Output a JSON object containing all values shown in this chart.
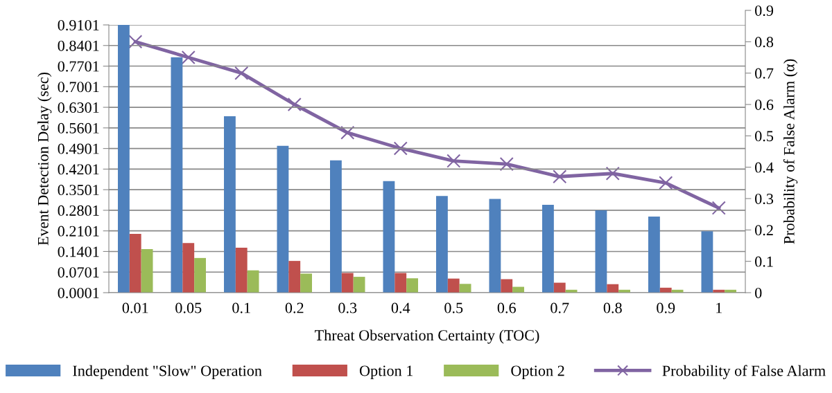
{
  "chart_data": {
    "type": "bar",
    "xlabel": "Threat Observation Certainty (TOC)",
    "ylabel": "Event Detection Delay (sec)",
    "y2label": "Probability of False Alarm (α)",
    "categories": [
      "0.01",
      "0.05",
      "0.1",
      "0.2",
      "0.3",
      "0.4",
      "0.5",
      "0.6",
      "0.7",
      "0.8",
      "0.9",
      "1"
    ],
    "series": [
      {
        "name": "Independent \"Slow\" Operation",
        "color": "#4f81bd",
        "values": [
          0.91,
          0.8,
          0.6,
          0.499,
          0.45,
          0.379,
          0.329,
          0.319,
          0.299,
          0.28,
          0.259,
          0.209
        ]
      },
      {
        "name": "Option 1",
        "color": "#c0504d",
        "values": [
          0.2,
          0.169,
          0.153,
          0.108,
          0.067,
          0.067,
          0.048,
          0.046,
          0.034,
          0.029,
          0.017,
          0.01
        ]
      },
      {
        "name": "Option 2",
        "color": "#9bbb59",
        "values": [
          0.148,
          0.118,
          0.076,
          0.065,
          0.054,
          0.049,
          0.03,
          0.02,
          0.01,
          0.01,
          0.01,
          0.01
        ]
      },
      {
        "name": "Probability of False Alarm",
        "color": "#8064a2",
        "type": "line",
        "axis": "y2",
        "marker": "cross",
        "values": [
          0.8,
          0.75,
          0.7,
          0.6,
          0.51,
          0.46,
          0.42,
          0.41,
          0.37,
          0.38,
          0.35,
          0.27
        ]
      }
    ],
    "ylim": [
      0.0001,
      0.9101
    ],
    "yticks": [
      {
        "value": 0.0001,
        "label": "0.0001"
      },
      {
        "value": 0.0701,
        "label": "0.0701"
      },
      {
        "value": 0.1401,
        "label": "0.1401"
      },
      {
        "value": 0.2101,
        "label": "0.2101"
      },
      {
        "value": 0.2801,
        "label": "0.2801"
      },
      {
        "value": 0.3501,
        "label": "0.3501"
      },
      {
        "value": 0.4201,
        "label": "0.4201"
      },
      {
        "value": 0.4901,
        "label": "0.4901"
      },
      {
        "value": 0.5601,
        "label": "0.5601"
      },
      {
        "value": 0.6301,
        "label": "0.6301"
      },
      {
        "value": 0.7001,
        "label": "0.7001"
      },
      {
        "value": 0.7701,
        "label": "0.7701"
      },
      {
        "value": 0.8401,
        "label": "0.8401"
      },
      {
        "value": 0.9101,
        "label": "0.9101"
      }
    ],
    "y2lim": [
      0,
      0.9
    ],
    "y2ticks": [
      {
        "value": 0,
        "label": "0"
      },
      0.1,
      0.2,
      0.3,
      0.4,
      0.5,
      0.6,
      0.7,
      0.8,
      0.9
    ],
    "grid": "y",
    "legend": "bottom"
  }
}
